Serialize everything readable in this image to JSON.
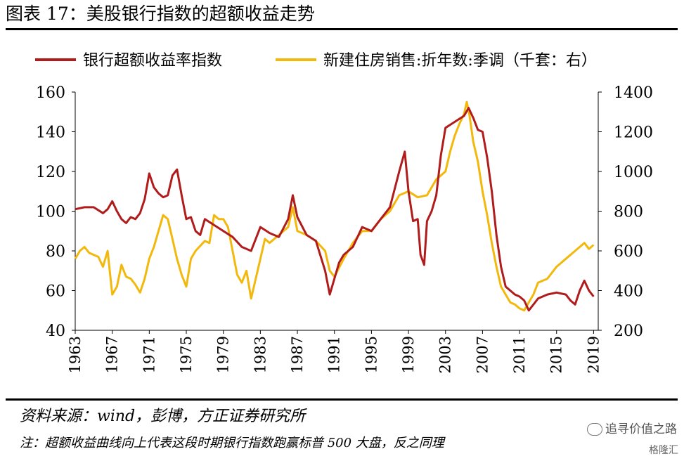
{
  "header": {
    "title": "图表 17：美股银行指数的超额收益走势"
  },
  "footer": {
    "source": "资料来源：wind，彭博，方正证券研究所",
    "note": "注：超额收益曲线向上代表这段时期银行指数跑赢标普 500 大盘，反之同理",
    "watermark": "追寻价值之路",
    "watermark2": "格隆汇"
  },
  "chart_data": {
    "type": "line",
    "title": "",
    "xlabel": "",
    "ylabel_left": "",
    "ylabel_right": "",
    "x_ticks": [
      1963,
      1967,
      1971,
      1975,
      1979,
      1983,
      1987,
      1991,
      1995,
      1999,
      2003,
      2007,
      2011,
      2015,
      2019
    ],
    "x_range": [
      1963,
      2019.5
    ],
    "y_left_range": [
      40,
      160
    ],
    "y_left_ticks": [
      40,
      60,
      80,
      100,
      120,
      140,
      160
    ],
    "y_right_range": [
      200,
      1400
    ],
    "y_right_ticks": [
      200,
      400,
      600,
      800,
      1000,
      1200,
      1400
    ],
    "grid": false,
    "legend_position": "top",
    "series": [
      {
        "name": "银行超额收益率指数",
        "color": "#b01c1c",
        "axis": "left",
        "x": [
          1963,
          1964,
          1965,
          1966,
          1966.5,
          1967,
          1967.5,
          1968,
          1968.5,
          1969,
          1969.5,
          1970,
          1970.5,
          1971,
          1971.5,
          1972,
          1972.5,
          1973,
          1973.5,
          1974,
          1974.5,
          1975,
          1975.5,
          1976,
          1976.5,
          1977,
          1978,
          1979,
          1980,
          1981,
          1982,
          1983,
          1984,
          1985,
          1986,
          1986.5,
          1987,
          1988,
          1989,
          1990,
          1990.5,
          1991,
          1991.5,
          1992,
          1993,
          1994,
          1995,
          1996,
          1997,
          1998,
          1998.6,
          1999,
          1999.5,
          2000,
          2000.3,
          2000.7,
          2001,
          2001.5,
          2002,
          2002.5,
          2003,
          2004,
          2005,
          2005.5,
          2006,
          2006.5,
          2007,
          2007.5,
          2008,
          2008.5,
          2009,
          2009.5,
          2010,
          2010.5,
          2011,
          2011.5,
          2012,
          2013,
          2014,
          2015,
          2016,
          2016.5,
          2017,
          2017.5,
          2018,
          2018.5,
          2019
        ],
        "y": [
          101,
          102,
          102,
          99,
          101,
          105,
          100,
          96,
          94,
          97,
          96,
          99,
          106,
          119,
          112,
          109,
          107,
          108,
          118,
          121,
          108,
          96,
          97,
          90,
          88,
          96,
          93,
          90,
          87,
          82,
          80,
          92,
          89,
          87,
          96,
          108,
          97,
          88,
          85,
          70,
          58,
          66,
          74,
          78,
          82,
          92,
          90,
          96,
          102,
          120,
          130,
          110,
          95,
          96,
          78,
          73,
          95,
          100,
          108,
          128,
          142,
          145,
          148,
          152,
          147,
          141,
          140,
          127,
          110,
          88,
          72,
          62,
          60,
          58,
          57,
          55,
          50,
          56,
          58,
          59,
          58,
          55,
          53,
          60,
          65,
          60,
          57
        ]
      },
      {
        "name": "新建住房销售:折年数:季调（千套：右）",
        "color": "#f2b80c",
        "axis": "right",
        "x": [
          1963,
          1963.5,
          1964,
          1964.5,
          1965,
          1965.5,
          1966,
          1966.5,
          1967,
          1967.5,
          1968,
          1968.5,
          1969,
          1969.5,
          1970,
          1970.5,
          1971,
          1971.5,
          1972,
          1972.5,
          1973,
          1973.5,
          1974,
          1974.5,
          1975,
          1975.5,
          1976,
          1977,
          1977.5,
          1978,
          1978.5,
          1979,
          1979.5,
          1980,
          1980.5,
          1981,
          1981.5,
          1982,
          1983,
          1983.5,
          1984,
          1985,
          1986,
          1986.5,
          1987,
          1988,
          1989,
          1990,
          1990.5,
          1991,
          1992,
          1993,
          1994,
          1995,
          1996,
          1997,
          1998,
          1999,
          2000,
          2001,
          2002,
          2003,
          2003.5,
          2004,
          2004.5,
          2005,
          2005.3,
          2005.6,
          2006,
          2006.5,
          2007,
          2007.5,
          2008,
          2008.5,
          2009,
          2009.5,
          2010,
          2010.5,
          2011,
          2011.5,
          2012,
          2012.5,
          2013,
          2014,
          2015,
          2016,
          2017,
          2017.5,
          2018,
          2018.5,
          2019
        ],
        "y": [
          560,
          600,
          620,
          590,
          580,
          570,
          520,
          600,
          380,
          420,
          530,
          470,
          460,
          430,
          390,
          460,
          560,
          620,
          700,
          780,
          760,
          660,
          560,
          480,
          420,
          560,
          600,
          650,
          640,
          780,
          760,
          760,
          720,
          600,
          480,
          440,
          500,
          360,
          560,
          660,
          640,
          680,
          720,
          820,
          700,
          680,
          650,
          600,
          500,
          470,
          560,
          640,
          700,
          700,
          760,
          800,
          880,
          900,
          870,
          880,
          960,
          1000,
          1100,
          1180,
          1240,
          1290,
          1350,
          1280,
          1150,
          1050,
          900,
          780,
          640,
          520,
          420,
          380,
          340,
          330,
          310,
          300,
          340,
          380,
          440,
          460,
          520,
          560,
          600,
          620,
          640,
          610,
          630
        ]
      }
    ]
  }
}
